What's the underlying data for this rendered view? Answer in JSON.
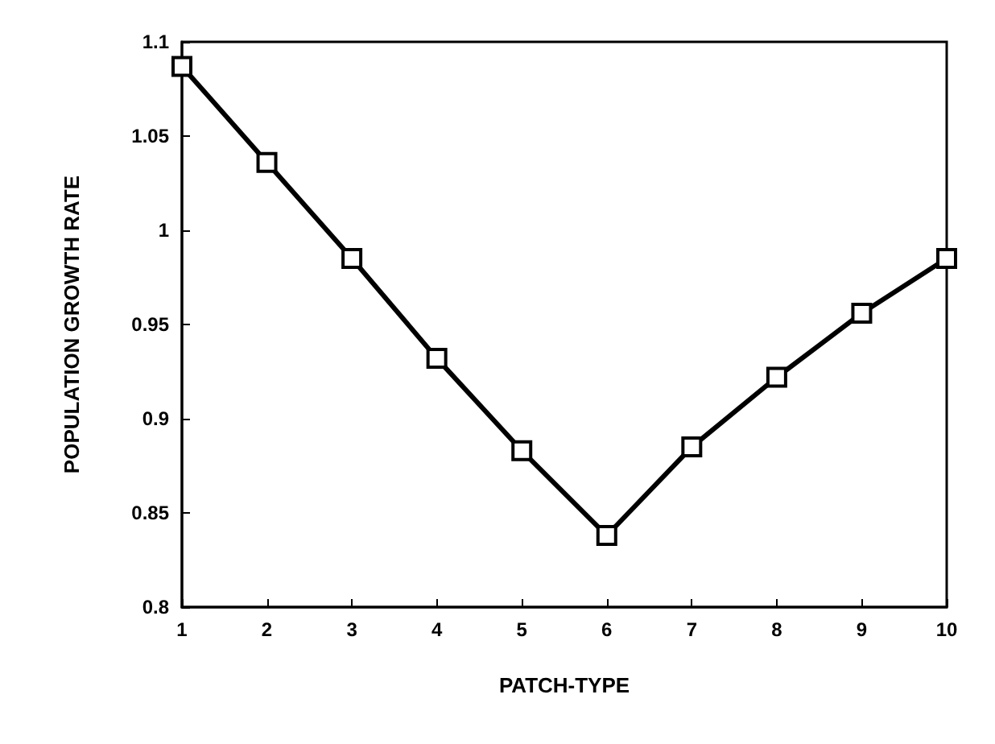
{
  "chart_data": {
    "type": "line",
    "xlabel": "PATCH-TYPE",
    "ylabel": "POPULATION GROWTH RATE",
    "x": [
      1,
      2,
      3,
      4,
      5,
      6,
      7,
      8,
      9,
      10
    ],
    "series": [
      {
        "color": "#000000",
        "values": [
          1.087,
          1.036,
          0.985,
          0.932,
          0.883,
          0.838,
          0.885,
          0.922,
          0.956,
          0.985
        ]
      }
    ],
    "xlim": [
      1,
      10
    ],
    "xticks": [
      1,
      2,
      3,
      4,
      5,
      6,
      7,
      8,
      9,
      10
    ],
    "ylim": [
      0.8,
      1.1
    ],
    "yticks": [
      0.8,
      0.85,
      0.9,
      0.95,
      1,
      1.05,
      1.1
    ],
    "grid": false,
    "marker": "square",
    "line_style": "solid"
  }
}
